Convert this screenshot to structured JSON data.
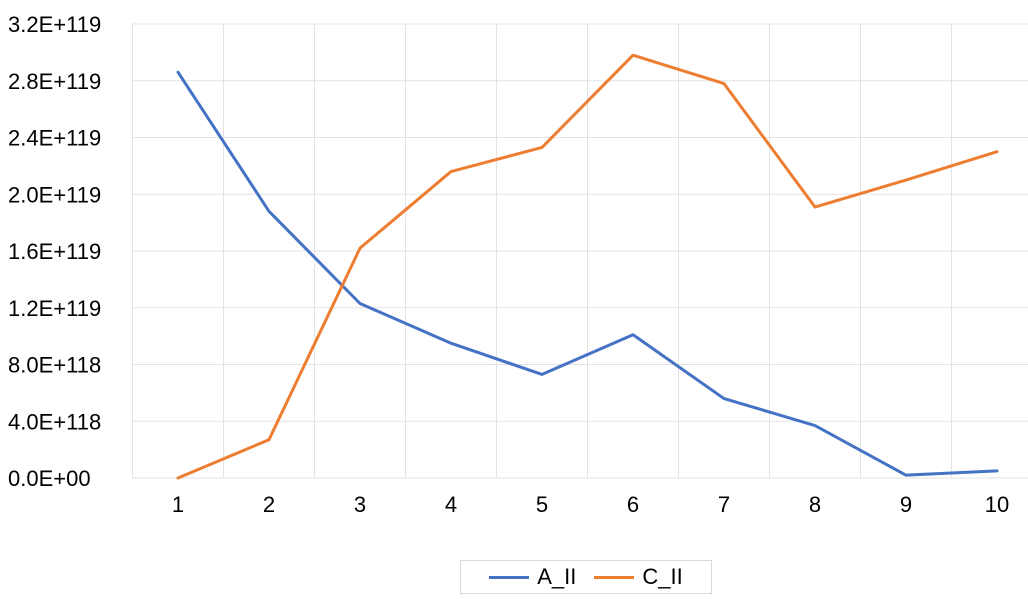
{
  "chart_data": {
    "type": "line",
    "title": "",
    "xlabel": "",
    "ylabel": "",
    "x": [
      1,
      2,
      3,
      4,
      5,
      6,
      7,
      8,
      9,
      10
    ],
    "x_tick_labels": [
      "1",
      "2",
      "3",
      "4",
      "5",
      "6",
      "7",
      "8",
      "9",
      "10"
    ],
    "ylim": [
      0,
      3.2e+119
    ],
    "y_ticks": [
      0,
      4e+118,
      8e+118,
      1.2e+119,
      1.6e+119,
      2e+119,
      2.4e+119,
      2.8e+119,
      3.2e+119
    ],
    "y_tick_labels": [
      "0.0E+00",
      "4.0E+118",
      "8.0E+118",
      "1.2E+119",
      "1.6E+119",
      "2.0E+119",
      "2.4E+119",
      "2.8E+119",
      "3.2E+119"
    ],
    "grid": "vertical and horizontal gridlines, light gray",
    "legend_position": "bottom",
    "series": [
      {
        "name": "A_II",
        "color": "#4472C4",
        "values": [
          2.86e+119,
          1.88e+119,
          1.23e+119,
          9.5e+118,
          7.3e+118,
          1.01e+119,
          5.6e+118,
          3.7e+118,
          2e+117,
          5e+117
        ]
      },
      {
        "name": "C_II",
        "color": "#ED7D31",
        "values": [
          0,
          2.7e+118,
          1.62e+119,
          2.16e+119,
          2.33e+119,
          2.98e+119,
          2.78e+119,
          1.91e+119,
          2.1e+119,
          2.3e+119
        ]
      }
    ]
  }
}
